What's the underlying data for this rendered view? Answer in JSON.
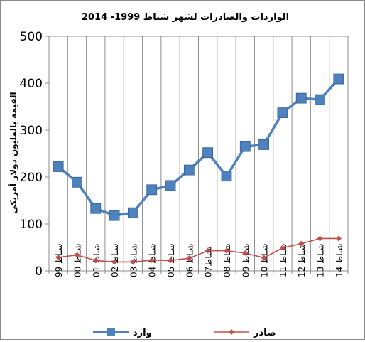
{
  "chart_data": {
    "type": "line",
    "title": "الواردات والصادرات لشهر شباط  1999-  2014",
    "ylabel": "القيمة بالمليون دولار أمريكي",
    "xlabel": "",
    "ylim": [
      0,
      500
    ],
    "yticks": [
      "0",
      "100",
      "200",
      "300",
      "400",
      "500"
    ],
    "ytick_values": [
      0,
      100,
      200,
      300,
      400,
      500
    ],
    "categories": [
      "شباط 99",
      "شباط 00",
      "شباط 01",
      "شباط 02",
      "شباط 03",
      "شباط 04",
      "شباط 05",
      "شباط 06",
      "شباط07",
      "شباط 08",
      "شباط 09",
      "شباط 10",
      "شباط 11",
      "شباط 12",
      "شباط 13",
      "شباط 14"
    ],
    "grid": "vertical",
    "legend_position": "bottom",
    "series": [
      {
        "name": "وارد",
        "color": "#4f81bd",
        "marker": "square",
        "values": [
          222,
          189,
          133,
          118,
          124,
          173,
          182,
          215,
          252,
          202,
          265,
          269,
          337,
          368,
          365,
          409
        ]
      },
      {
        "name": "صادر",
        "color": "#c0504d",
        "marker": "diamond",
        "values": [
          29,
          34,
          22,
          19,
          19,
          23,
          22,
          27,
          43,
          43,
          38,
          28,
          49,
          58,
          69,
          69
        ]
      }
    ]
  }
}
